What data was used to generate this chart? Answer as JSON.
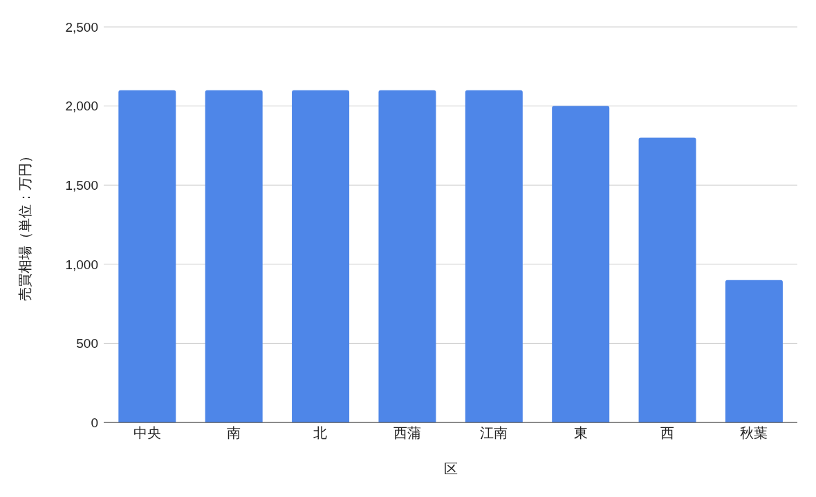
{
  "chart_data": {
    "type": "bar",
    "xlabel": "区",
    "ylabel": "売買相場（単位：万円）",
    "categories": [
      "中央",
      "南",
      "北",
      "西蒲",
      "江南",
      "東",
      "西",
      "秋葉"
    ],
    "values": [
      2100,
      2100,
      2100,
      2100,
      2100,
      2000,
      1800,
      900
    ],
    "color": "#4e86e8",
    "ylim": [
      0,
      2500
    ],
    "yticks": [
      {
        "value": 0,
        "label": "0"
      },
      {
        "value": 500,
        "label": "500"
      },
      {
        "value": 1000,
        "label": "1,000"
      },
      {
        "value": 1500,
        "label": "1,500"
      },
      {
        "value": 2000,
        "label": "2,000"
      },
      {
        "value": 2500,
        "label": "2,500"
      }
    ],
    "grid": "y"
  }
}
